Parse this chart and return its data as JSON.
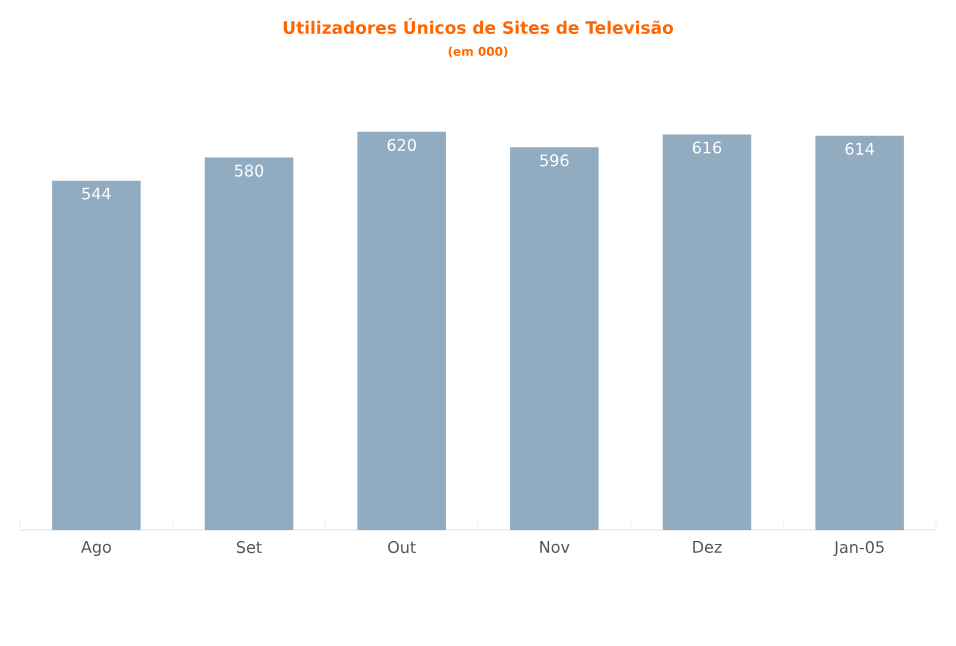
{
  "chart_data": {
    "type": "bar",
    "title": "Utilizadores Únicos de Sites de Televisão",
    "subtitle": "(em 000)",
    "categories": [
      "Ago",
      "Set",
      "Out",
      "Nov",
      "Dez",
      "Jan-05"
    ],
    "values": [
      544,
      580,
      620,
      596,
      616,
      614
    ],
    "color": "#91abc1",
    "data_labels": true
  }
}
